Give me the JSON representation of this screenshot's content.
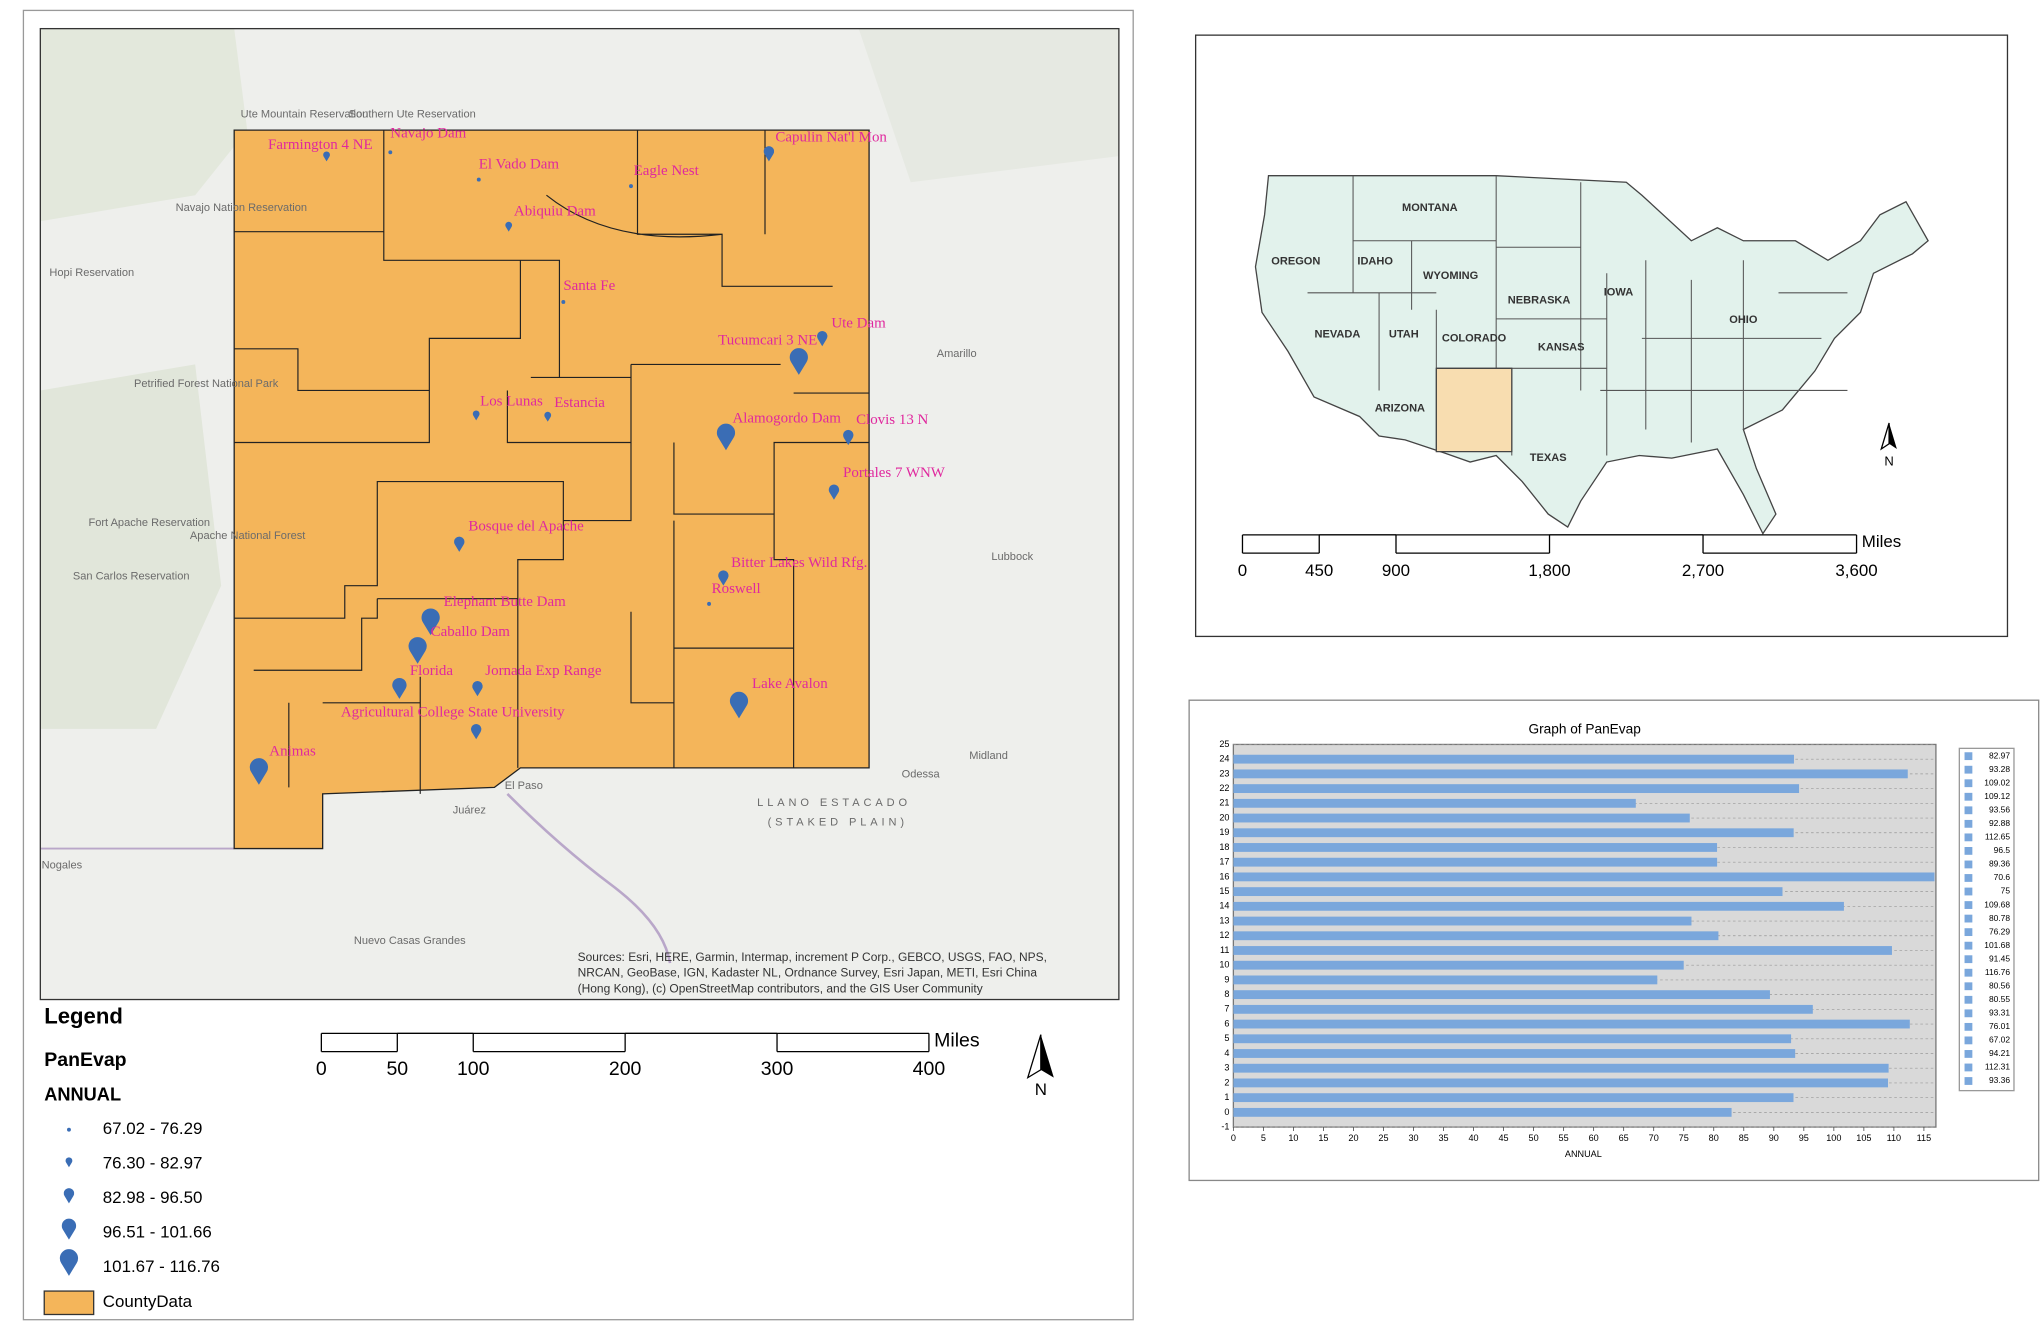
{
  "main_map": {
    "stations": [
      "Farmington 4 NE",
      "Navajo Dam",
      "El Vado Dam",
      "Capulin Nat'l Mon",
      "Eagle Nest",
      "Abiquiu Dam",
      "Santa Fe",
      "Ute Dam",
      "Tucumcari 3 NE",
      "Los Lunas",
      "Estancia",
      "Alamogordo Dam",
      "Clovis 13 N",
      "Portales 7 WNW",
      "Bosque del Apache",
      "Bitter Lakes Wild Rfg.",
      "Roswell",
      "Elephant Butte Dam",
      "Caballo Dam",
      "Florida",
      "Jornada Exp Range",
      "Agricultural College State University",
      "Animas",
      "Lake Avalon"
    ],
    "basemap_labels": [
      "Ute Mountain Reservation",
      "Southern Ute Reservation",
      "Navajo Nation Reservation",
      "Hopi Reservation",
      "Petrified Forest National Park",
      "Fort Apache Reservation",
      "Apache National Forest",
      "San Carlos Reservation",
      "Amarillo",
      "Lubbock",
      "Odessa",
      "Midland",
      "El Paso",
      "Juárez",
      "Nogales",
      "Nuevo Casas Grandes",
      "LLANO ESTACADO",
      "(STAKED PLAIN)"
    ],
    "sources": [
      "Sources: Esri, HERE, Garmin, Intermap, increment P Corp., GEBCO, USGS, FAO, NPS,",
      "NRCAN, GeoBase, IGN, Kadaster NL, Ordnance Survey, Esri Japan, METI, Esri China",
      "(Hong Kong), (c) OpenStreetMap contributors, and the GIS User Community"
    ]
  },
  "legend": {
    "title": "Legend",
    "layer": "PanEvap",
    "field": "ANNUAL",
    "classes": [
      "67.02 - 76.29",
      "76.30 - 82.97",
      "82.98 - 96.50",
      "96.51 - 101.66",
      "101.67 - 116.76"
    ],
    "county_layer": "CountyData"
  },
  "scale_bar": {
    "ticks": [
      0,
      50,
      100,
      200,
      300,
      400
    ],
    "unit": "Miles"
  },
  "north": "N",
  "inset_map": {
    "states": [
      "MONTANA",
      "OREGON",
      "IDAHO",
      "WYOMING",
      "NEBRASKA",
      "IOWA",
      "NEVADA",
      "UTAH",
      "COLORADO",
      "KANSAS",
      "OHIO",
      "ARIZONA",
      "TEXAS"
    ],
    "scale_bar": {
      "ticks": [
        0,
        450,
        900,
        {
          "value": 1800,
          "label": "1,800"
        },
        {
          "value": 2700,
          "label": "2,700"
        },
        {
          "value": 3600,
          "label": "3,600"
        }
      ],
      "unit": "Miles"
    },
    "north": "N"
  },
  "chart_data": {
    "type": "bar",
    "orientation": "horizontal",
    "title": "Graph of PanEvap",
    "x_label": "ANNUAL",
    "values": [
      82.97,
      93.28,
      109.02,
      109.12,
      93.56,
      92.88,
      112.65,
      96.5,
      89.36,
      70.6,
      75,
      109.68,
      80.78,
      76.29,
      101.68,
      91.45,
      116.76,
      80.56,
      80.55,
      93.31,
      76.01,
      67.02,
      94.21,
      112.31,
      93.36
    ],
    "color": "#7aa7dc",
    "xlim": [
      0,
      117
    ],
    "xticks": [
      0,
      5,
      10,
      15,
      20,
      25,
      30,
      35,
      40,
      45,
      50,
      55,
      60,
      65,
      70,
      75,
      80,
      85,
      90,
      95,
      100,
      105,
      110,
      115
    ],
    "ylim": [
      -1,
      25
    ],
    "yticks": [
      -1,
      0,
      1,
      2,
      3,
      4,
      5,
      6,
      7,
      8,
      9,
      10,
      11,
      12,
      13,
      14,
      15,
      16,
      17,
      18,
      19,
      20,
      21,
      22,
      23,
      24,
      25
    ],
    "grid": true
  }
}
